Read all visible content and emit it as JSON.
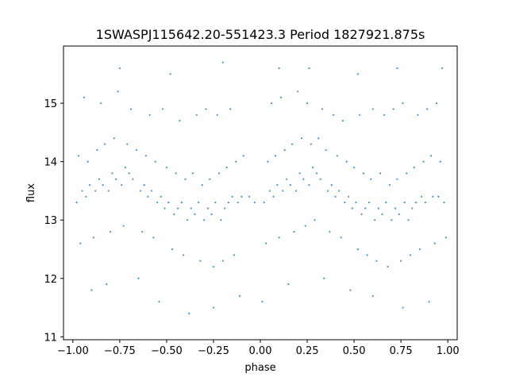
{
  "chart_data": {
    "type": "scatter",
    "title": "1SWASPJ115642.20-551423.3 Period 1827921.875s",
    "xlabel": "phase",
    "ylabel": "flux",
    "xlim": [
      -1.05,
      1.05
    ],
    "ylim": [
      10.95,
      15.98
    ],
    "xticks": [
      -1.0,
      -0.75,
      -0.5,
      -0.25,
      0.0,
      0.25,
      0.5,
      0.75,
      1.0
    ],
    "xtick_labels": [
      "−1.00",
      "−0.75",
      "−0.50",
      "−0.25",
      "0.00",
      "0.25",
      "0.50",
      "0.75",
      "1.00"
    ],
    "yticks": [
      11,
      12,
      13,
      14,
      15
    ],
    "ytick_labels": [
      "11",
      "12",
      "13",
      "14",
      "15"
    ],
    "grid": false,
    "legend": "none",
    "marker_color": "#1f77b4",
    "series": [
      {
        "x": [
          -0.98,
          -0.95,
          -0.93,
          -0.91,
          -0.88,
          -0.86,
          -0.84,
          -0.81,
          -0.79,
          -0.77,
          -0.74,
          -0.72,
          -0.7,
          -0.68,
          -0.64,
          -0.62,
          -0.6,
          -0.58,
          -0.55,
          -0.53,
          -0.51,
          -0.49,
          -0.46,
          -0.44,
          -0.42,
          -0.39,
          -0.37,
          -0.35,
          -0.33,
          -0.3,
          -0.28,
          -0.26,
          -0.24,
          -0.21,
          -0.19,
          -0.17,
          -0.15,
          -0.12,
          -0.1,
          -0.06,
          -0.03,
          0.02,
          0.05,
          0.07,
          0.09,
          0.12,
          0.14,
          0.16,
          0.19,
          0.21,
          0.23,
          0.26,
          0.28,
          0.3,
          0.32,
          0.36,
          0.38,
          0.4,
          0.42,
          0.45,
          0.47,
          0.49,
          0.51,
          0.54,
          0.56,
          0.58,
          0.61,
          0.63,
          0.65,
          0.67,
          0.7,
          0.72,
          0.74,
          0.77,
          0.79,
          0.81,
          0.83,
          0.86,
          0.88,
          0.92,
          0.95,
          0.98,
          -0.97,
          -0.92,
          -0.87,
          -0.83,
          -0.78,
          -0.71,
          -0.66,
          -0.61,
          -0.56,
          -0.5,
          -0.45,
          -0.4,
          -0.36,
          -0.31,
          -0.27,
          -0.22,
          -0.18,
          -0.13,
          -0.09,
          0.04,
          0.08,
          0.13,
          0.17,
          0.22,
          0.27,
          0.31,
          0.35,
          0.41,
          0.46,
          0.5,
          0.55,
          0.59,
          0.64,
          0.69,
          0.73,
          0.78,
          0.82,
          0.87,
          0.91,
          0.96,
          -0.96,
          -0.89,
          -0.8,
          -0.73,
          -0.63,
          -0.57,
          -0.47,
          -0.41,
          -0.32,
          -0.25,
          -0.2,
          -0.14,
          0.03,
          0.1,
          0.18,
          0.24,
          0.29,
          0.37,
          0.43,
          0.52,
          0.57,
          0.62,
          0.68,
          0.75,
          0.8,
          0.85,
          0.93,
          0.99,
          -0.94,
          -0.85,
          -0.76,
          -0.69,
          -0.59,
          -0.52,
          -0.43,
          -0.34,
          -0.29,
          -0.23,
          -0.16,
          0.06,
          0.11,
          0.2,
          0.25,
          0.33,
          0.39,
          0.44,
          0.53,
          0.6,
          0.66,
          0.71,
          0.76,
          0.84,
          0.89,
          0.94,
          -0.9,
          -0.82,
          -0.65,
          -0.54,
          -0.38,
          -0.25,
          -0.11,
          0.01,
          0.15,
          0.34,
          0.48,
          0.6,
          0.76,
          0.9,
          -0.75,
          -0.48,
          -0.2,
          0.1,
          0.26,
          0.52,
          0.73,
          0.97
        ],
        "y": [
          13.3,
          13.5,
          13.4,
          13.6,
          13.5,
          13.7,
          13.6,
          13.5,
          13.8,
          13.7,
          13.6,
          13.9,
          13.8,
          13.7,
          13.5,
          13.6,
          13.4,
          13.5,
          13.3,
          13.4,
          13.2,
          13.3,
          13.1,
          13.2,
          13.3,
          13.0,
          13.2,
          13.1,
          13.3,
          13.0,
          13.2,
          13.1,
          13.3,
          13.0,
          13.2,
          13.3,
          13.4,
          13.3,
          13.4,
          13.4,
          13.3,
          13.3,
          13.5,
          13.4,
          13.6,
          13.5,
          13.7,
          13.6,
          13.5,
          13.8,
          13.7,
          13.6,
          13.9,
          13.8,
          13.7,
          13.5,
          13.6,
          13.4,
          13.5,
          13.3,
          13.4,
          13.2,
          13.3,
          13.1,
          13.2,
          13.3,
          13.0,
          13.2,
          13.1,
          13.3,
          13.0,
          13.2,
          13.1,
          13.3,
          13.0,
          13.2,
          13.3,
          13.4,
          13.3,
          13.4,
          13.4,
          13.3,
          14.1,
          14.0,
          14.2,
          14.3,
          14.4,
          14.3,
          14.2,
          14.1,
          14.0,
          13.9,
          13.8,
          13.7,
          13.8,
          13.6,
          13.7,
          13.8,
          13.9,
          14.0,
          14.1,
          14.0,
          14.1,
          14.2,
          14.3,
          14.4,
          14.3,
          14.4,
          14.2,
          14.1,
          14.0,
          13.9,
          13.8,
          13.7,
          13.8,
          13.6,
          13.7,
          13.8,
          13.9,
          14.0,
          14.1,
          14.0,
          12.6,
          12.7,
          12.8,
          12.9,
          12.8,
          12.7,
          12.5,
          12.4,
          12.3,
          12.2,
          12.3,
          12.4,
          12.6,
          12.7,
          12.8,
          12.9,
          13.0,
          12.8,
          12.7,
          12.5,
          12.4,
          12.3,
          12.2,
          12.3,
          12.4,
          12.5,
          12.6,
          12.7,
          15.1,
          15.0,
          15.2,
          14.9,
          14.8,
          14.9,
          14.7,
          14.8,
          14.9,
          14.8,
          14.9,
          15.0,
          15.1,
          15.2,
          15.0,
          14.9,
          14.8,
          14.7,
          14.8,
          14.9,
          14.8,
          14.9,
          15.0,
          14.8,
          14.9,
          15.0,
          11.8,
          11.9,
          12.0,
          11.6,
          11.4,
          11.5,
          11.7,
          11.6,
          11.9,
          12.0,
          11.8,
          11.7,
          11.5,
          11.6,
          15.6,
          15.5,
          15.7,
          15.6,
          15.6,
          15.5,
          15.6,
          15.6
        ]
      }
    ]
  }
}
